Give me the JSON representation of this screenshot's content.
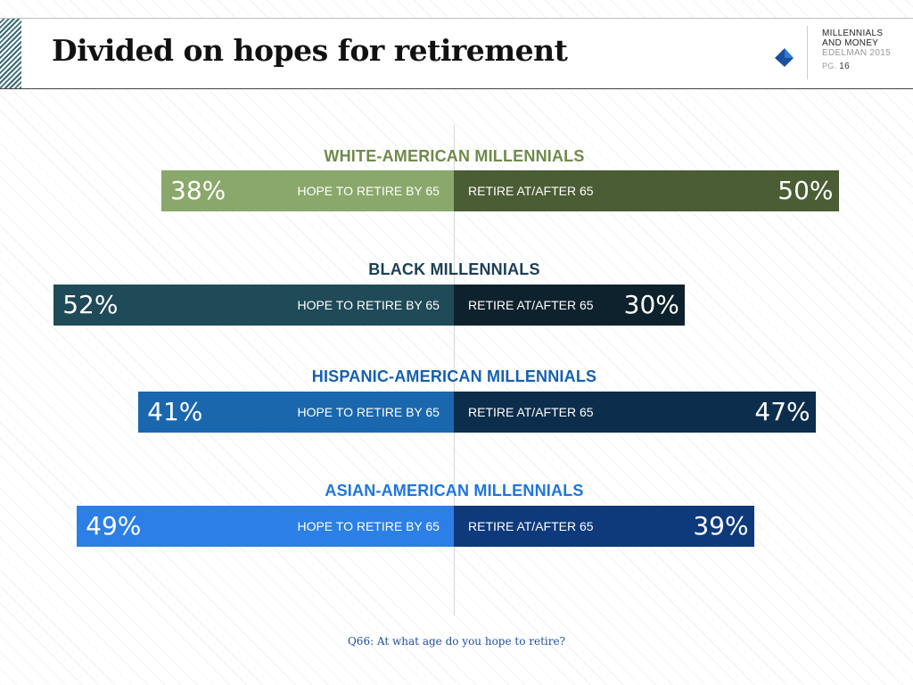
{
  "header": {
    "title": "Divided on hopes for retirement",
    "brand_line1": "MILLENNIALS",
    "brand_line2": "AND MONEY",
    "brand_line3": "EDELMAN 2015",
    "page_prefix": "PG.",
    "page_number": "16"
  },
  "footer": {
    "question": "Q66: At what age do you hope to retire?"
  },
  "chart_data": {
    "type": "bar",
    "orientation": "horizontal-diverging",
    "categories": [
      "WHITE-AMERICAN MILLENNIALS",
      "BLACK MILLENNIALS",
      "HISPANIC-AMERICAN MILLENNIALS",
      "ASIAN-AMERICAN MILLENNIALS"
    ],
    "series": [
      {
        "name": "HOPE TO RETIRE BY 65",
        "values": [
          38,
          52,
          41,
          49
        ]
      },
      {
        "name": "RETIRE AT/AFTER 65",
        "values": [
          50,
          30,
          47,
          39
        ]
      }
    ],
    "value_labels": {
      "left": [
        "38%",
        "52%",
        "41%",
        "49%"
      ],
      "right": [
        "50%",
        "30%",
        "47%",
        "39%"
      ]
    },
    "colors": {
      "titles": [
        "#6f8a4a",
        "#1c3f55",
        "#1560b0",
        "#1d75e0"
      ],
      "left": [
        "#8aa86b",
        "#1f4a58",
        "#1a67ad",
        "#2b7fe6"
      ],
      "right": [
        "#4a5d34",
        "#0e222d",
        "#0c2d4c",
        "#0e3a7c"
      ]
    }
  }
}
